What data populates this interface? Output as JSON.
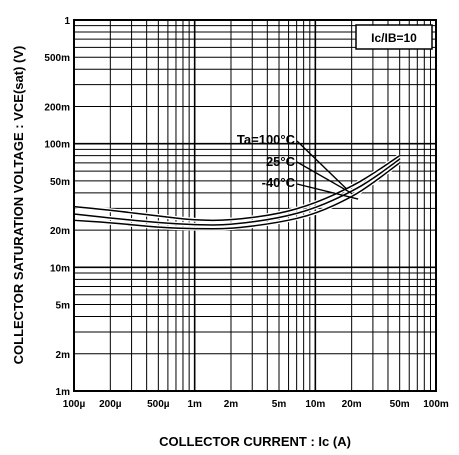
{
  "chart_data": {
    "type": "line",
    "title": "",
    "xlabel": "COLLECTOR  CURRENT : Ic (A)",
    "ylabel": "COLLECTOR SATURATION VOLTAGE : VCE(sat) (V)",
    "x_scale": "log",
    "y_scale": "log",
    "xlim": [
      0.0001,
      0.1
    ],
    "ylim": [
      0.001,
      1
    ],
    "grid": true,
    "x_ticks": [
      {
        "value": 0.0001,
        "label": "100µ"
      },
      {
        "value": 0.0002,
        "label": "200µ"
      },
      {
        "value": 0.0005,
        "label": "500µ"
      },
      {
        "value": 0.001,
        "label": "1m"
      },
      {
        "value": 0.002,
        "label": "2m"
      },
      {
        "value": 0.005,
        "label": "5m"
      },
      {
        "value": 0.01,
        "label": "10m"
      },
      {
        "value": 0.02,
        "label": "20m"
      },
      {
        "value": 0.05,
        "label": "50m"
      },
      {
        "value": 0.1,
        "label": "100m"
      }
    ],
    "y_ticks": [
      {
        "value": 1,
        "label": "1"
      },
      {
        "value": 0.5,
        "label": "500m"
      },
      {
        "value": 0.2,
        "label": "200m"
      },
      {
        "value": 0.1,
        "label": "100m"
      },
      {
        "value": 0.05,
        "label": "50m"
      },
      {
        "value": 0.02,
        "label": "20m"
      },
      {
        "value": 0.01,
        "label": "10m"
      },
      {
        "value": 0.005,
        "label": "5m"
      },
      {
        "value": 0.002,
        "label": "2m"
      },
      {
        "value": 0.001,
        "label": "1m"
      }
    ],
    "condition_label": "Ic/IB=10",
    "series": [
      {
        "name": "Ta=100°C",
        "x": [
          0.0001,
          0.0002,
          0.0005,
          0.001,
          0.002,
          0.005,
          0.01,
          0.02,
          0.03,
          0.05
        ],
        "y": [
          0.031,
          0.029,
          0.026,
          0.024,
          0.024,
          0.027,
          0.033,
          0.045,
          0.057,
          0.08
        ]
      },
      {
        "name": "25°C",
        "x": [
          0.0001,
          0.0002,
          0.0005,
          0.001,
          0.002,
          0.005,
          0.01,
          0.02,
          0.03,
          0.05
        ],
        "y": [
          0.027,
          0.025,
          0.023,
          0.022,
          0.022,
          0.025,
          0.03,
          0.041,
          0.052,
          0.075
        ]
      },
      {
        "name": "-40°C",
        "x": [
          0.0001,
          0.0002,
          0.0005,
          0.001,
          0.002,
          0.005,
          0.01,
          0.02,
          0.03,
          0.05
        ],
        "y": [
          0.024,
          0.023,
          0.021,
          0.0205,
          0.0205,
          0.023,
          0.027,
          0.037,
          0.048,
          0.07
        ]
      }
    ]
  }
}
